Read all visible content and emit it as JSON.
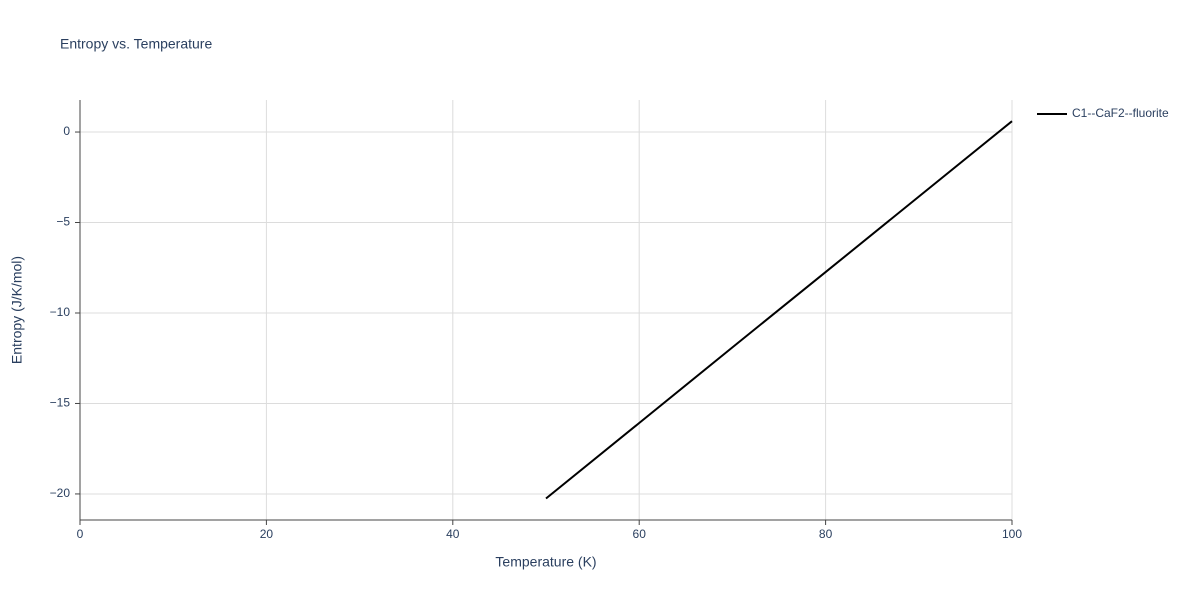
{
  "chart_data": {
    "type": "line",
    "title": "Entropy vs. Temperature",
    "x_label": "Temperature (K)",
    "y_label": "Entropy (J/K/mol)",
    "x": [
      50,
      60,
      70,
      80,
      90,
      100
    ],
    "series": [
      {
        "name": "C1--CaF2--fluorite",
        "color": "#000000",
        "values": [
          -20.25,
          -16.08,
          -11.9,
          -7.74,
          -3.57,
          0.6
        ]
      }
    ],
    "xlim": [
      0,
      100
    ],
    "xticks": [
      0,
      20,
      40,
      60,
      80,
      100
    ],
    "ylim": [
      -21.44,
      1.77
    ],
    "yticks": [
      {
        "value": 0,
        "label": "0"
      },
      {
        "value": -5,
        "label": "−5"
      },
      {
        "value": -10,
        "label": "−10"
      },
      {
        "value": -15,
        "label": "−15"
      },
      {
        "value": -20,
        "label": "−20"
      }
    ],
    "grid": true,
    "legend": "right"
  }
}
